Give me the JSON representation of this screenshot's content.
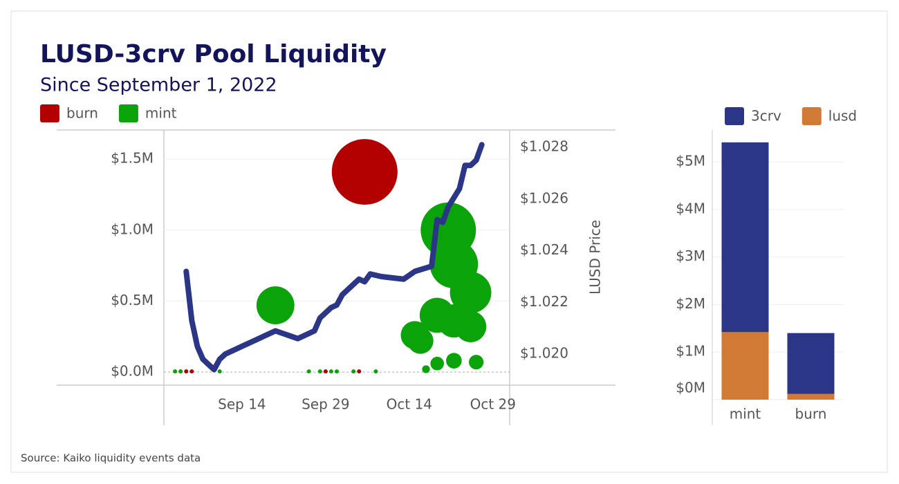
{
  "chart_data": [
    {
      "type": "bubble",
      "title": "LUSD-3crv Pool Liquidity",
      "subtitle": "Since September 1, 2022",
      "source": "Source: Kaiko liquidity events data",
      "series": [
        {
          "name": "burn",
          "color": "#b30000",
          "x": [
            "2022-09-03",
            "2022-09-04",
            "2022-09-05",
            "2022-09-29",
            "2022-10-05",
            "2022-10-06"
          ],
          "values": [
            5000,
            5000,
            5000,
            5000,
            5000,
            1410000
          ]
        },
        {
          "name": "mint",
          "color": "#0aa30a",
          "x": [
            "2022-09-02",
            "2022-09-03",
            "2022-09-10",
            "2022-09-20",
            "2022-09-26",
            "2022-09-28",
            "2022-09-30",
            "2022-10-01",
            "2022-10-04",
            "2022-10-08",
            "2022-10-15",
            "2022-10-16",
            "2022-10-17",
            "2022-10-19",
            "2022-10-19",
            "2022-10-21",
            "2022-10-22",
            "2022-10-22",
            "2022-10-22",
            "2022-10-25",
            "2022-10-25",
            "2022-10-26"
          ],
          "values": [
            5000,
            5000,
            5000,
            470000,
            5000,
            5000,
            5000,
            5000,
            5000,
            5000,
            260000,
            220000,
            20000,
            400000,
            60000,
            1000000,
            760000,
            360000,
            80000,
            560000,
            320000,
            70000
          ]
        }
      ],
      "line": {
        "type": "line",
        "axis": "y2",
        "color": "#2b3687",
        "x": [
          "2022-09-04",
          "2022-09-05",
          "2022-09-06",
          "2022-09-07",
          "2022-09-08",
          "2022-09-09",
          "2022-09-10",
          "2022-09-11",
          "2022-09-14",
          "2022-09-17",
          "2022-09-20",
          "2022-09-24",
          "2022-09-27",
          "2022-09-28",
          "2022-09-30",
          "2022-10-01",
          "2022-10-02",
          "2022-10-04",
          "2022-10-05",
          "2022-10-06",
          "2022-10-07",
          "2022-10-09",
          "2022-10-13",
          "2022-10-15",
          "2022-10-18",
          "2022-10-19",
          "2022-10-20",
          "2022-10-21",
          "2022-10-23",
          "2022-10-24",
          "2022-10-25",
          "2022-10-26",
          "2022-10-27"
        ],
        "values": [
          1.0232,
          1.0213,
          1.0203,
          1.0198,
          1.0196,
          1.0194,
          1.0198,
          1.02,
          1.0203,
          1.0206,
          1.0209,
          1.0206,
          1.0209,
          1.0214,
          1.0218,
          1.0219,
          1.0223,
          1.0227,
          1.0229,
          1.0228,
          1.0231,
          1.023,
          1.0229,
          1.0232,
          1.0234,
          1.0252,
          1.0251,
          1.0257,
          1.0264,
          1.0273,
          1.0273,
          1.0275,
          1.0281
        ]
      },
      "xlim": [
        "2022-08-31",
        "2022-11-01"
      ],
      "xticks": [
        {
          "value": "2022-09-14",
          "label": "Sep 14"
        },
        {
          "value": "2022-09-29",
          "label": "Sep 29"
        },
        {
          "value": "2022-10-14",
          "label": "Oct 14"
        },
        {
          "value": "2022-10-29",
          "label": "Oct 29"
        }
      ],
      "ylim": [
        -92000,
        1705000
      ],
      "yticks": [
        {
          "value": 0,
          "label": "$0.0M"
        },
        {
          "value": 500000,
          "label": "$0.5M"
        },
        {
          "value": 1000000,
          "label": "$1.0M"
        },
        {
          "value": 1500000,
          "label": "$1.5M"
        }
      ],
      "y2lim": [
        1.0188,
        1.02867
      ],
      "y2ticks": [
        {
          "value": 1.02,
          "label": "$1.020"
        },
        {
          "value": 1.022,
          "label": "$1.022"
        },
        {
          "value": 1.024,
          "label": "$1.024"
        },
        {
          "value": 1.026,
          "label": "$1.026"
        },
        {
          "value": 1.028,
          "label": "$1.028"
        }
      ],
      "y2label": "LUSD Price",
      "grid": true
    },
    {
      "type": "bar",
      "stacked": true,
      "categories": [
        "mint",
        "burn"
      ],
      "series": [
        {
          "name": "3crv",
          "color": "#2b3687",
          "values": [
            3990000,
            1280000
          ]
        },
        {
          "name": "lusd",
          "color": "#d17a35",
          "values": [
            1420000,
            120000
          ]
        }
      ],
      "ylim": [
        0,
        5670000
      ],
      "yticks": [
        {
          "value": 0,
          "label": "$0M"
        },
        {
          "value": 1000000,
          "label": "$1M"
        },
        {
          "value": 2000000,
          "label": "$2M"
        },
        {
          "value": 3000000,
          "label": "$3M"
        },
        {
          "value": 4000000,
          "label": "$4M"
        },
        {
          "value": 5000000,
          "label": "$5M"
        }
      ],
      "grid": true
    }
  ]
}
